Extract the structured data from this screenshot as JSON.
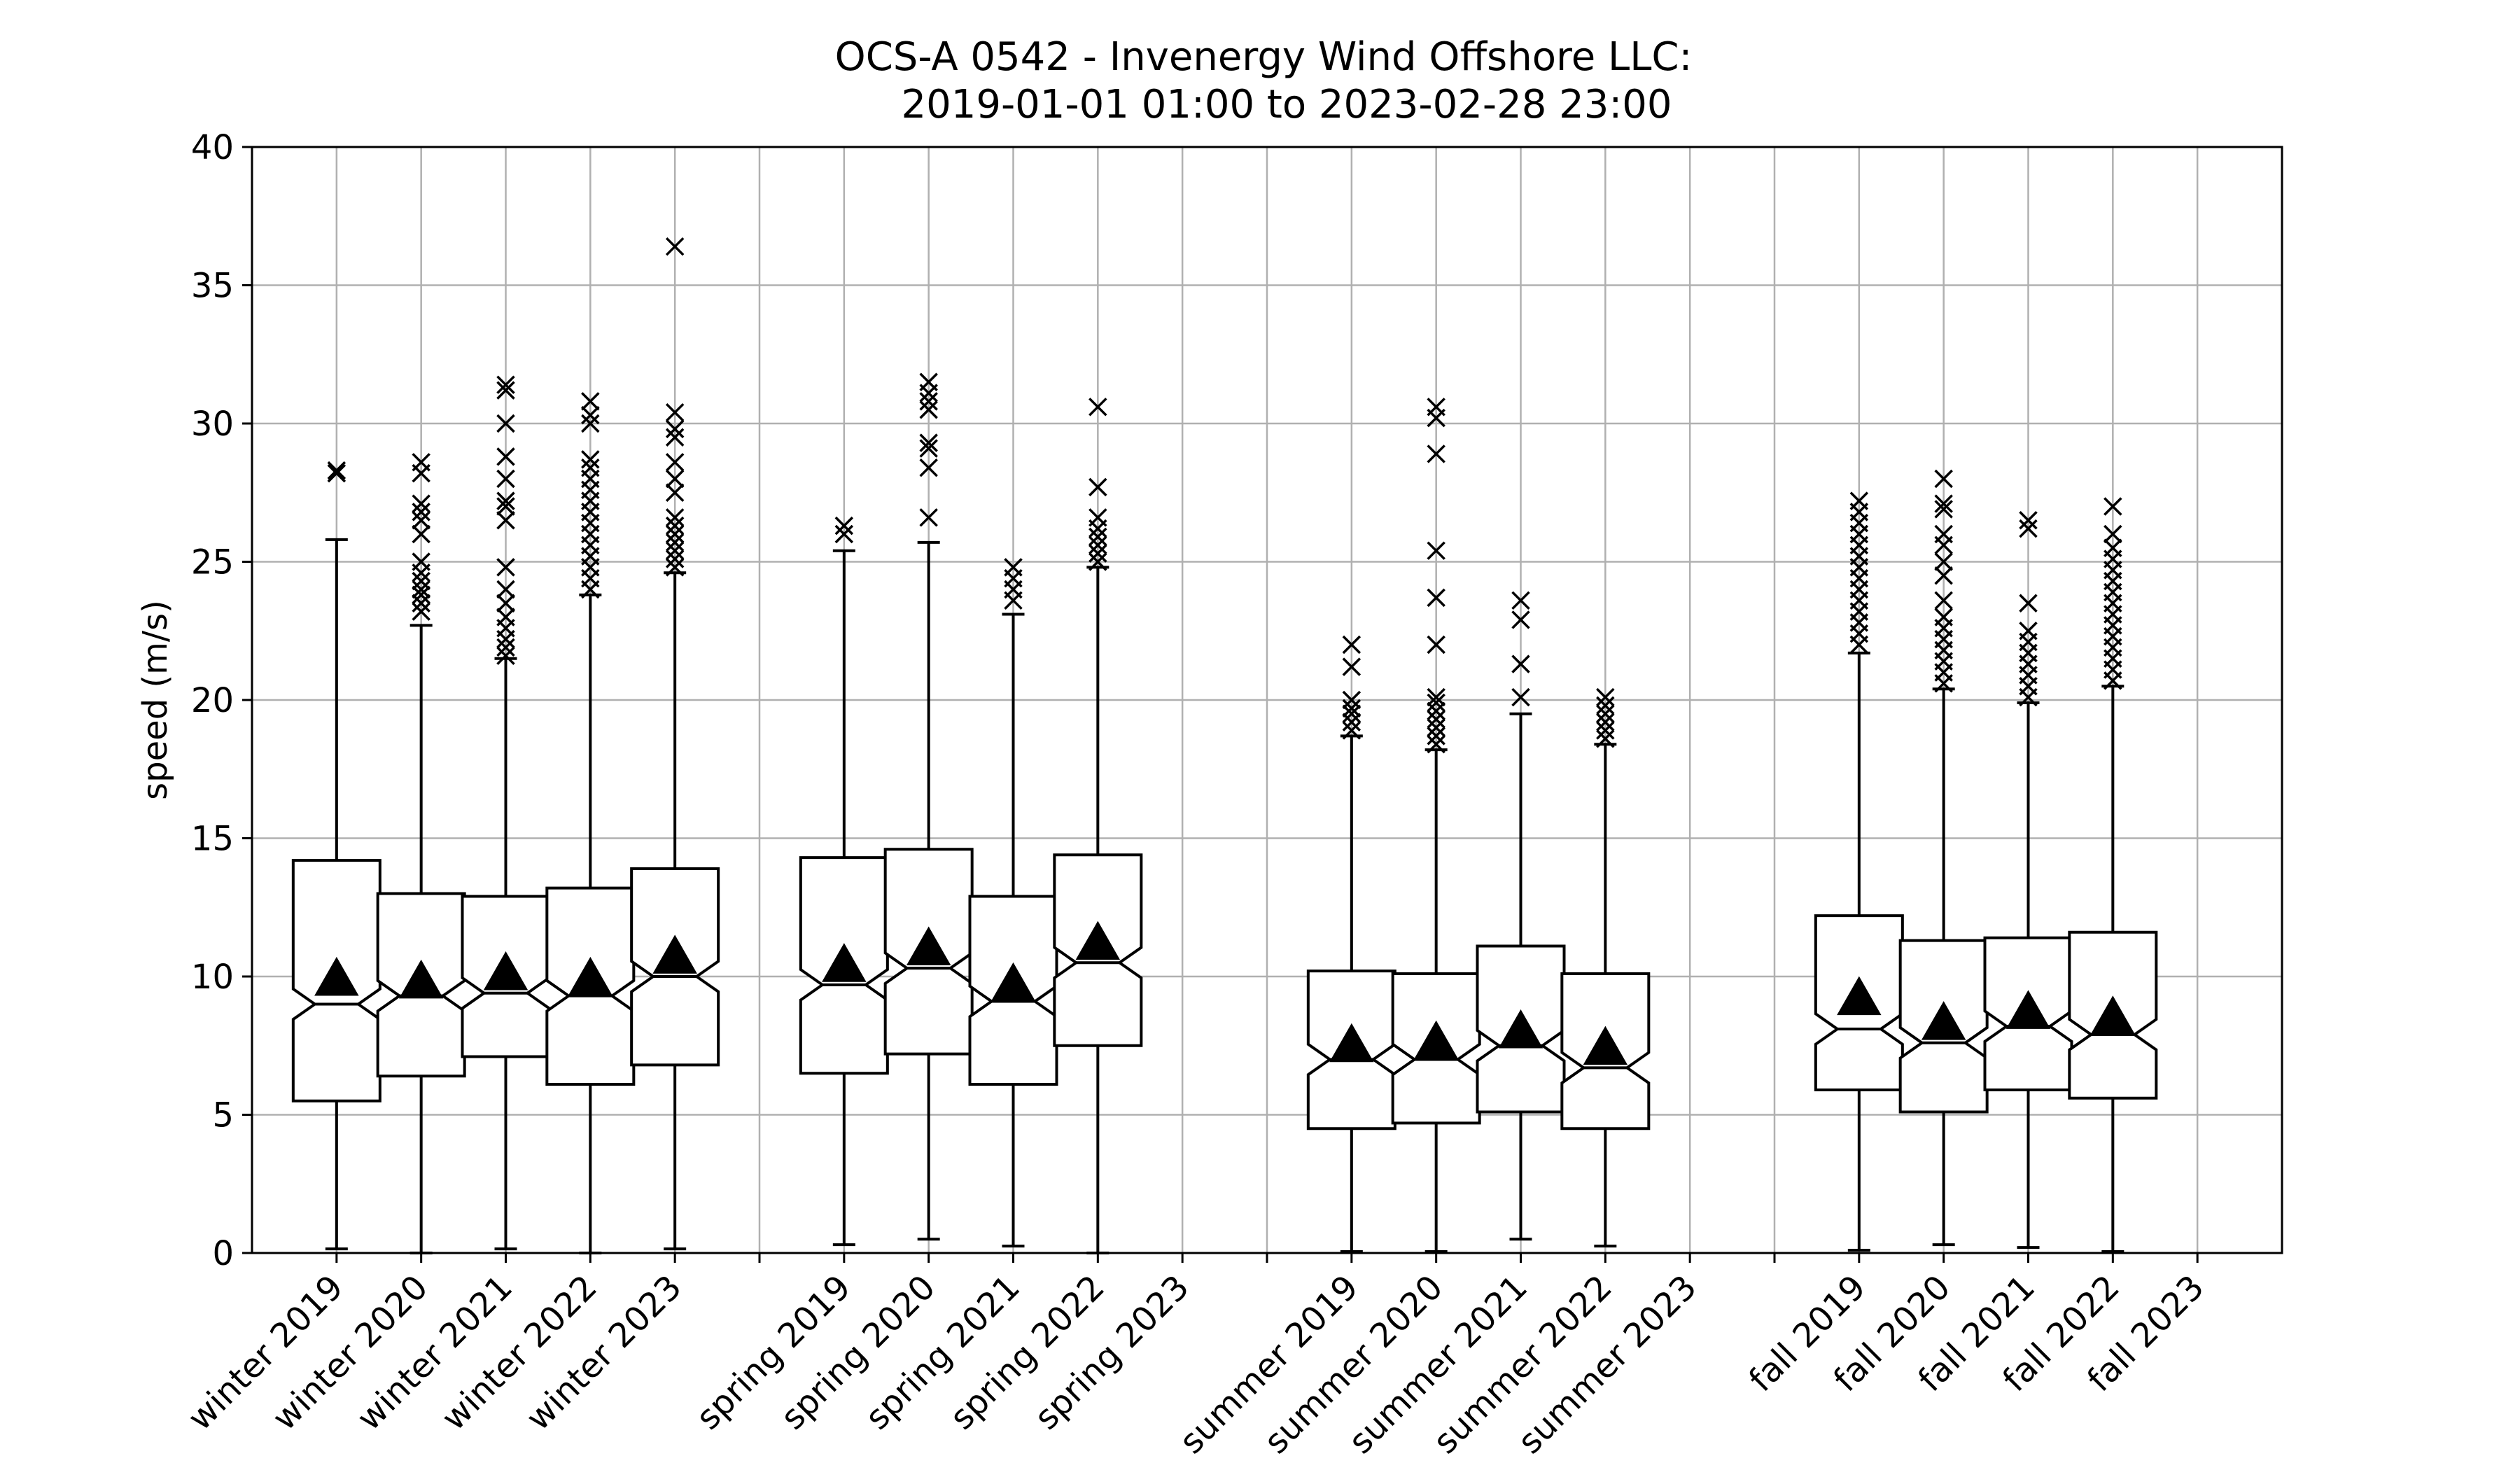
{
  "chart_data": {
    "type": "boxplot",
    "title_line1": "OCS-A 0542 - Invenergy Wind Offshore LLC:",
    "title_line2": "2019-01-01 01:00 to 2023-02-28 23:00",
    "xlabel": "",
    "ylabel": "speed (m/s)",
    "ylim": [
      0,
      40
    ],
    "yticks": [
      0,
      5,
      10,
      15,
      20,
      25,
      30,
      35,
      40
    ],
    "grid": true,
    "categories": [
      "winter 2019",
      "winter 2020",
      "winter 2021",
      "winter 2022",
      "winter 2023",
      "",
      "spring 2019",
      "spring 2020",
      "spring 2021",
      "spring 2022",
      "spring 2023",
      "",
      "summer 2019",
      "summer 2020",
      "summer 2021",
      "summer 2022",
      "summer 2023",
      "",
      "fall 2019",
      "fall 2020",
      "fall 2021",
      "fall 2022",
      "fall 2023"
    ],
    "boxes": [
      {
        "category": "winter 2019",
        "whislo": 0.15,
        "q1": 5.5,
        "med": 9.0,
        "q3": 14.2,
        "whishi": 25.8,
        "mean": 9.9,
        "fliers": [
          28.2,
          28.3
        ]
      },
      {
        "category": "winter 2020",
        "whislo": 0.0,
        "q1": 6.4,
        "med": 9.3,
        "q3": 13.0,
        "whishi": 22.7,
        "mean": 9.8,
        "fliers": [
          23.2,
          23.5,
          23.8,
          24.0,
          24.3,
          24.6,
          25.0,
          26.0,
          26.5,
          26.8,
          27.1,
          28.2,
          28.6
        ]
      },
      {
        "category": "winter 2021",
        "whislo": 0.15,
        "q1": 7.1,
        "med": 9.4,
        "q3": 12.9,
        "whishi": 21.5,
        "mean": 10.1,
        "fliers": [
          21.6,
          21.9,
          22.2,
          22.6,
          23.0,
          23.5,
          24.0,
          24.8,
          26.5,
          27.0,
          27.2,
          28.0,
          28.8,
          30.0,
          31.2,
          31.4
        ]
      },
      {
        "category": "winter 2022",
        "whislo": 0.0,
        "q1": 6.1,
        "med": 9.3,
        "q3": 13.2,
        "whishi": 23.8,
        "mean": 9.9,
        "fliers": [
          24.0,
          24.4,
          24.8,
          25.2,
          25.6,
          26.0,
          26.4,
          26.8,
          27.2,
          27.6,
          28.0,
          28.4,
          28.7,
          30.0,
          30.3,
          30.8
        ]
      },
      {
        "category": "winter 2023",
        "whislo": 0.15,
        "q1": 6.8,
        "med": 10.0,
        "q3": 13.9,
        "whishi": 24.6,
        "mean": 10.7,
        "fliers": [
          24.8,
          25.1,
          25.4,
          25.7,
          26.0,
          26.3,
          26.6,
          27.5,
          28.0,
          28.6,
          29.5,
          29.8,
          30.4,
          36.4
        ]
      },
      {
        "category": "spring 2019",
        "whislo": 0.3,
        "q1": 6.5,
        "med": 9.7,
        "q3": 14.3,
        "whishi": 25.4,
        "mean": 10.4,
        "fliers": [
          26.0,
          26.3
        ]
      },
      {
        "category": "spring 2020",
        "whislo": 0.5,
        "q1": 7.2,
        "med": 10.3,
        "q3": 14.6,
        "whishi": 25.7,
        "mean": 11.0,
        "fliers": [
          26.6,
          28.4,
          29.1,
          29.3,
          30.5,
          30.8,
          31.1,
          31.5
        ]
      },
      {
        "category": "spring 2021",
        "whislo": 0.25,
        "q1": 6.1,
        "med": 9.1,
        "q3": 12.9,
        "whishi": 23.1,
        "mean": 9.7,
        "fliers": [
          23.6,
          24.0,
          24.4,
          24.8
        ]
      },
      {
        "category": "spring 2022",
        "whislo": 0.0,
        "q1": 7.5,
        "med": 10.5,
        "q3": 14.4,
        "whishi": 24.8,
        "mean": 11.2,
        "fliers": [
          25.0,
          25.3,
          25.6,
          25.9,
          26.2,
          26.6,
          27.7,
          30.6
        ]
      },
      {
        "category": "summer 2019",
        "whislo": 0.05,
        "q1": 4.5,
        "med": 7.0,
        "q3": 10.2,
        "whishi": 18.7,
        "mean": 7.5,
        "fliers": [
          18.9,
          19.2,
          19.5,
          19.7,
          20.0,
          21.2,
          22.0
        ]
      },
      {
        "category": "summer 2020",
        "whislo": 0.05,
        "q1": 4.7,
        "med": 7.0,
        "q3": 10.1,
        "whishi": 18.2,
        "mean": 7.6,
        "fliers": [
          18.4,
          18.7,
          19.0,
          19.3,
          19.6,
          19.9,
          20.1,
          22.0,
          23.7,
          25.4,
          28.9,
          30.2,
          30.6
        ]
      },
      {
        "category": "summer 2021",
        "whislo": 0.5,
        "q1": 5.1,
        "med": 7.5,
        "q3": 11.1,
        "whishi": 19.5,
        "mean": 8.0,
        "fliers": [
          20.1,
          21.3,
          22.9,
          23.6
        ]
      },
      {
        "category": "summer 2022",
        "whislo": 0.25,
        "q1": 4.5,
        "med": 6.7,
        "q3": 10.1,
        "whishi": 18.4,
        "mean": 7.4,
        "fliers": [
          18.6,
          18.9,
          19.2,
          19.5,
          19.8,
          20.1
        ]
      },
      {
        "category": "fall 2019",
        "whislo": 0.1,
        "q1": 5.9,
        "med": 8.1,
        "q3": 12.2,
        "whishi": 21.7,
        "mean": 9.2,
        "fliers": [
          22.0,
          22.4,
          22.8,
          23.2,
          23.6,
          24.0,
          24.4,
          24.8,
          25.2,
          25.6,
          26.0,
          26.4,
          26.8,
          27.2
        ]
      },
      {
        "category": "fall 2020",
        "whislo": 0.3,
        "q1": 5.1,
        "med": 7.6,
        "q3": 11.3,
        "whishi": 20.4,
        "mean": 8.3,
        "fliers": [
          20.6,
          21.0,
          21.4,
          21.8,
          22.2,
          22.6,
          23.0,
          23.6,
          24.5,
          25.0,
          25.6,
          26.0,
          26.9,
          27.1,
          28.0
        ]
      },
      {
        "category": "fall 2021",
        "whislo": 0.2,
        "q1": 5.9,
        "med": 8.2,
        "q3": 11.4,
        "whishi": 19.9,
        "mean": 8.7,
        "fliers": [
          20.1,
          20.5,
          20.9,
          21.3,
          21.7,
          22.1,
          22.5,
          23.5,
          26.2,
          26.5
        ]
      },
      {
        "category": "fall 2022",
        "whislo": 0.05,
        "q1": 5.6,
        "med": 7.9,
        "q3": 11.6,
        "whishi": 20.5,
        "mean": 8.5,
        "fliers": [
          20.7,
          21.1,
          21.5,
          21.9,
          22.3,
          22.7,
          23.1,
          23.5,
          23.9,
          24.3,
          24.7,
          25.1,
          25.5,
          26.0,
          27.0
        ]
      }
    ]
  }
}
